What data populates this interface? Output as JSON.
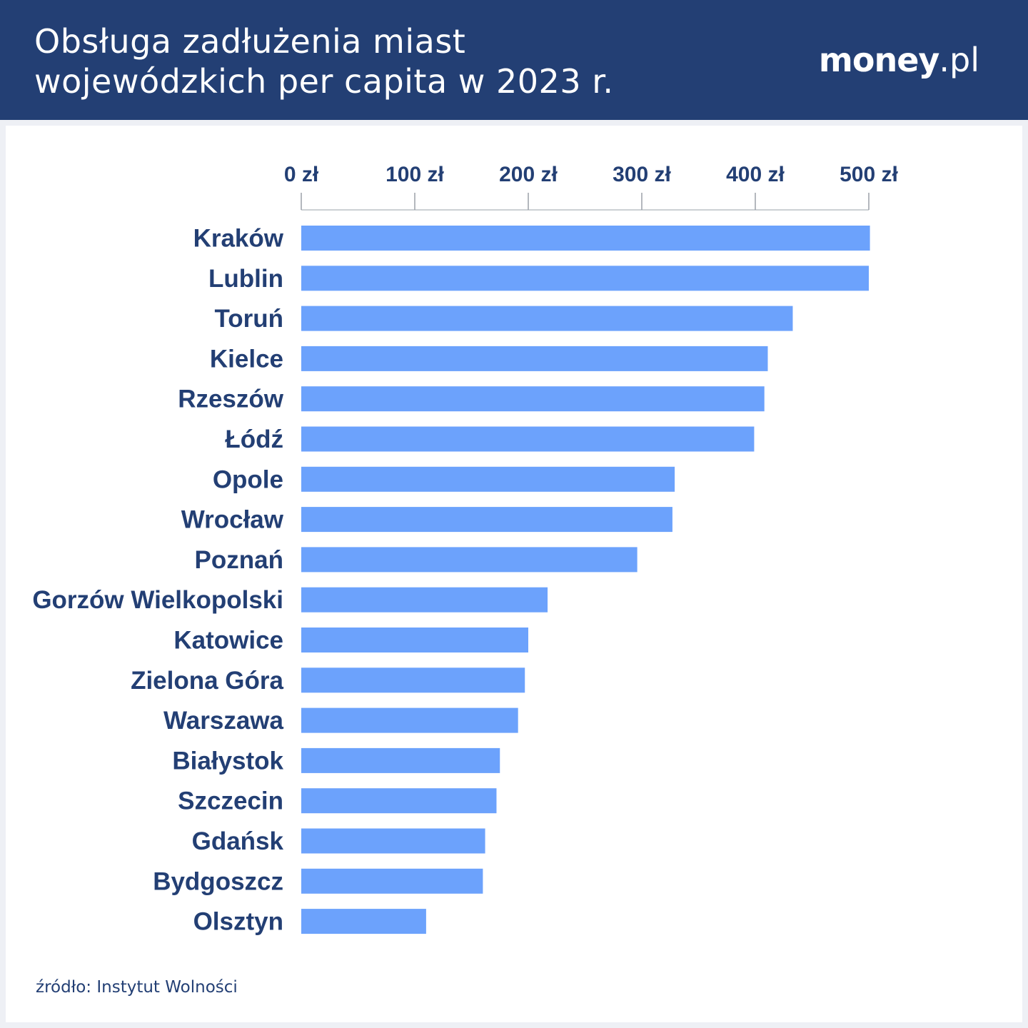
{
  "header": {
    "title_line1": "Obsługa zadłużenia miast",
    "title_line2": "wojewódzkich per capita w 2023 r.",
    "logo_main": "money",
    "logo_tld": ".pl"
  },
  "footer": {
    "source": "źródło: Instytut Wolności"
  },
  "colors": {
    "header_bg": "#233f74",
    "bar": "#6ca2fc",
    "text": "#233f74"
  },
  "chart_data": {
    "type": "bar",
    "orientation": "horizontal",
    "categories": [
      "Kraków",
      "Lublin",
      "Toruń",
      "Kielce",
      "Rzeszów",
      "Łódź",
      "Opole",
      "Wrocław",
      "Poznań",
      "Gorzów Wielkopolski",
      "Katowice",
      "Zielona Góra",
      "Warszawa",
      "Białystok",
      "Szczecin",
      "Gdańsk",
      "Bydgoszcz",
      "Olsztyn"
    ],
    "values": [
      501,
      500,
      433,
      411,
      408,
      399,
      329,
      327,
      296,
      217,
      200,
      197,
      191,
      175,
      172,
      162,
      160,
      110
    ],
    "xlim": [
      0,
      500
    ],
    "ticks": [
      0,
      100,
      200,
      300,
      400,
      500
    ],
    "tick_labels": [
      "0 zł",
      "100 zł",
      "200 zł",
      "300 zł",
      "400 zł",
      "500 zł"
    ],
    "axis_position": "top",
    "grid": false,
    "legend": "none"
  }
}
